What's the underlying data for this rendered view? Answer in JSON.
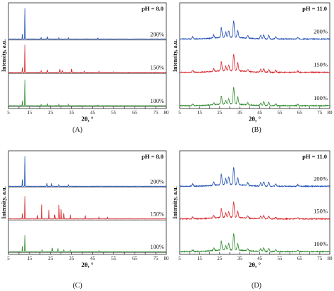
{
  "figure": {
    "captions": [
      "(A)",
      "(B)",
      "(C)",
      "(D)"
    ]
  },
  "chart_data": [
    {
      "type": "line",
      "panel": "A",
      "title": "pH = 8.0",
      "xlabel": "2θ, °",
      "ylabel": "Intensity, a.u.",
      "xlim": [
        5,
        80
      ],
      "xticks": [
        5,
        10,
        15,
        20,
        25,
        30,
        35,
        40,
        45,
        50,
        55,
        60,
        65,
        70,
        75,
        80
      ],
      "crystalline": true,
      "series": [
        {
          "name": "200%",
          "color": "#1f4fb4",
          "peaks": [
            [
              12.8,
              1.0
            ],
            [
              11.6,
              0.18
            ],
            [
              20.5,
              0.05
            ],
            [
              23.5,
              0.06
            ],
            [
              29.0,
              0.04
            ],
            [
              33.5,
              0.04
            ],
            [
              47.5,
              0.03
            ]
          ]
        },
        {
          "name": "150%",
          "color": "#d9262c",
          "peaks": [
            [
              12.8,
              0.9
            ],
            [
              11.6,
              0.18
            ],
            [
              20.5,
              0.06
            ],
            [
              23.5,
              0.07
            ],
            [
              29.4,
              0.1
            ],
            [
              30.6,
              0.06
            ],
            [
              35.0,
              0.1
            ],
            [
              41.0,
              0.04
            ],
            [
              48.0,
              0.03
            ],
            [
              55.0,
              0.02
            ]
          ]
        },
        {
          "name": "100%",
          "color": "#2e8b2e",
          "peaks": [
            [
              12.8,
              0.85
            ],
            [
              11.6,
              0.18
            ],
            [
              20.5,
              0.04
            ],
            [
              23.5,
              0.05
            ],
            [
              29.0,
              0.04
            ],
            [
              33.5,
              0.04
            ],
            [
              47.5,
              0.02
            ]
          ]
        }
      ]
    },
    {
      "type": "line",
      "panel": "B",
      "title": "pH = 11.0",
      "xlabel": "2θ, °",
      "ylabel": "Intensity, a.u.",
      "xlim": [
        5,
        80
      ],
      "xticks": [
        5,
        10,
        15,
        20,
        25,
        30,
        35,
        40,
        45,
        50,
        55,
        60,
        65,
        70,
        75,
        80
      ],
      "crystalline": false,
      "series": [
        {
          "name": "200%",
          "color": "#1f4fb4",
          "peaks": [
            [
              11.5,
              0.12
            ],
            [
              22.0,
              0.18
            ],
            [
              25.8,
              0.55
            ],
            [
              28.0,
              0.3
            ],
            [
              29.5,
              0.35
            ],
            [
              32.0,
              0.9
            ],
            [
              34.0,
              0.4
            ],
            [
              39.0,
              0.15
            ],
            [
              45.5,
              0.18
            ],
            [
              47.0,
              0.22
            ],
            [
              49.5,
              0.2
            ],
            [
              53.0,
              0.12
            ],
            [
              64.0,
              0.08
            ]
          ]
        },
        {
          "name": "150%",
          "color": "#d9262c",
          "peaks": [
            [
              11.5,
              0.1
            ],
            [
              22.0,
              0.15
            ],
            [
              25.8,
              0.5
            ],
            [
              28.0,
              0.25
            ],
            [
              29.5,
              0.3
            ],
            [
              32.0,
              0.9
            ],
            [
              34.0,
              0.45
            ],
            [
              39.0,
              0.12
            ],
            [
              45.5,
              0.15
            ],
            [
              47.0,
              0.18
            ],
            [
              49.5,
              0.15
            ],
            [
              53.0,
              0.1
            ],
            [
              64.0,
              0.07
            ]
          ]
        },
        {
          "name": "100%",
          "color": "#2e8b2e",
          "peaks": [
            [
              11.5,
              0.08
            ],
            [
              22.0,
              0.12
            ],
            [
              25.8,
              0.45
            ],
            [
              28.0,
              0.2
            ],
            [
              29.5,
              0.28
            ],
            [
              32.0,
              0.9
            ],
            [
              34.0,
              0.4
            ],
            [
              39.0,
              0.12
            ],
            [
              45.5,
              0.15
            ],
            [
              47.0,
              0.2
            ],
            [
              49.5,
              0.18
            ],
            [
              53.0,
              0.1
            ],
            [
              64.0,
              0.07
            ]
          ]
        }
      ]
    },
    {
      "type": "line",
      "panel": "C",
      "title": "pH = 8.0",
      "xlabel": "2θ, °",
      "ylabel": "Intensity, a.u.",
      "xlim": [
        5,
        80
      ],
      "xticks": [
        5,
        10,
        15,
        20,
        25,
        30,
        35,
        40,
        45,
        50,
        55,
        60,
        65,
        70,
        75,
        80
      ],
      "crystalline": true,
      "series": [
        {
          "name": "200%",
          "color": "#1f4fb4",
          "peaks": [
            [
              12.8,
              1.0
            ],
            [
              11.6,
              0.25
            ],
            [
              23.3,
              0.1
            ],
            [
              25.5,
              0.1
            ],
            [
              29.0,
              0.05
            ],
            [
              33.5,
              0.04
            ]
          ]
        },
        {
          "name": "150%",
          "color": "#d9262c",
          "peaks": [
            [
              12.8,
              0.75
            ],
            [
              11.6,
              0.2
            ],
            [
              18.8,
              0.12
            ],
            [
              20.8,
              0.55
            ],
            [
              24.2,
              0.3
            ],
            [
              27.0,
              0.15
            ],
            [
              29.0,
              0.45
            ],
            [
              30.0,
              0.35
            ],
            [
              31.3,
              0.2
            ],
            [
              34.4,
              0.15
            ],
            [
              41.5,
              0.1
            ],
            [
              48.0,
              0.06
            ],
            [
              52.0,
              0.05
            ]
          ]
        },
        {
          "name": "100%",
          "color": "#2e8b2e",
          "peaks": [
            [
              12.8,
              0.55
            ],
            [
              11.6,
              0.2
            ],
            [
              21.0,
              0.06
            ],
            [
              25.8,
              0.12
            ],
            [
              28.5,
              0.1
            ],
            [
              31.3,
              0.06
            ],
            [
              34.4,
              0.05
            ],
            [
              48.0,
              0.03
            ]
          ]
        }
      ]
    },
    {
      "type": "line",
      "panel": "D",
      "title": "pH = 11.0",
      "xlabel": "2θ, °",
      "ylabel": "Intensity, a.u.",
      "xlim": [
        5,
        80
      ],
      "xticks": [
        5,
        10,
        15,
        20,
        25,
        30,
        35,
        40,
        45,
        50,
        55,
        60,
        65,
        70,
        75,
        80
      ],
      "crystalline": false,
      "series": [
        {
          "name": "200%",
          "color": "#1f4fb4",
          "peaks": [
            [
              11.5,
              0.12
            ],
            [
              22.0,
              0.2
            ],
            [
              25.8,
              0.6
            ],
            [
              28.0,
              0.35
            ],
            [
              29.5,
              0.45
            ],
            [
              32.0,
              0.95
            ],
            [
              34.0,
              0.4
            ],
            [
              39.0,
              0.15
            ],
            [
              45.5,
              0.2
            ],
            [
              47.0,
              0.25
            ],
            [
              49.5,
              0.22
            ],
            [
              53.0,
              0.12
            ],
            [
              64.0,
              0.08
            ]
          ]
        },
        {
          "name": "150%",
          "color": "#d9262c",
          "peaks": [
            [
              11.5,
              0.1
            ],
            [
              22.0,
              0.15
            ],
            [
              25.8,
              0.5
            ],
            [
              28.0,
              0.25
            ],
            [
              29.5,
              0.3
            ],
            [
              32.0,
              0.85
            ],
            [
              34.0,
              0.35
            ],
            [
              39.0,
              0.12
            ],
            [
              45.5,
              0.15
            ],
            [
              47.0,
              0.18
            ],
            [
              49.5,
              0.15
            ],
            [
              53.0,
              0.1
            ],
            [
              64.0,
              0.07
            ]
          ]
        },
        {
          "name": "100%",
          "color": "#2e8b2e",
          "peaks": [
            [
              11.5,
              0.08
            ],
            [
              22.0,
              0.15
            ],
            [
              25.8,
              0.5
            ],
            [
              28.0,
              0.25
            ],
            [
              29.5,
              0.35
            ],
            [
              32.0,
              0.9
            ],
            [
              34.0,
              0.35
            ],
            [
              39.0,
              0.12
            ],
            [
              45.5,
              0.15
            ],
            [
              47.0,
              0.2
            ],
            [
              49.5,
              0.18
            ],
            [
              53.0,
              0.1
            ],
            [
              64.0,
              0.07
            ]
          ]
        }
      ]
    }
  ]
}
